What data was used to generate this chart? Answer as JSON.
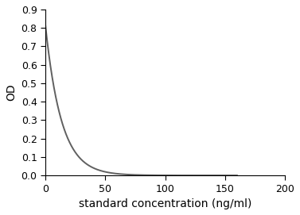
{
  "xlabel": "standard concentration (ng/ml)",
  "ylabel": "OD",
  "xlim": [
    0,
    200
  ],
  "ylim": [
    0,
    0.9
  ],
  "xticks": [
    0,
    50,
    100,
    150,
    200
  ],
  "yticks": [
    0.0,
    0.1,
    0.2,
    0.3,
    0.4,
    0.5,
    0.6,
    0.7,
    0.8,
    0.9
  ],
  "curve_color": "#606060",
  "curve_linewidth": 1.4,
  "background_color": "#ffffff",
  "axes_color": "#000000",
  "tick_label_fontsize": 9,
  "axis_label_fontsize": 10,
  "curve_start_od": 0.82,
  "curve_asymptote": 0.0,
  "curve_k": 0.075
}
